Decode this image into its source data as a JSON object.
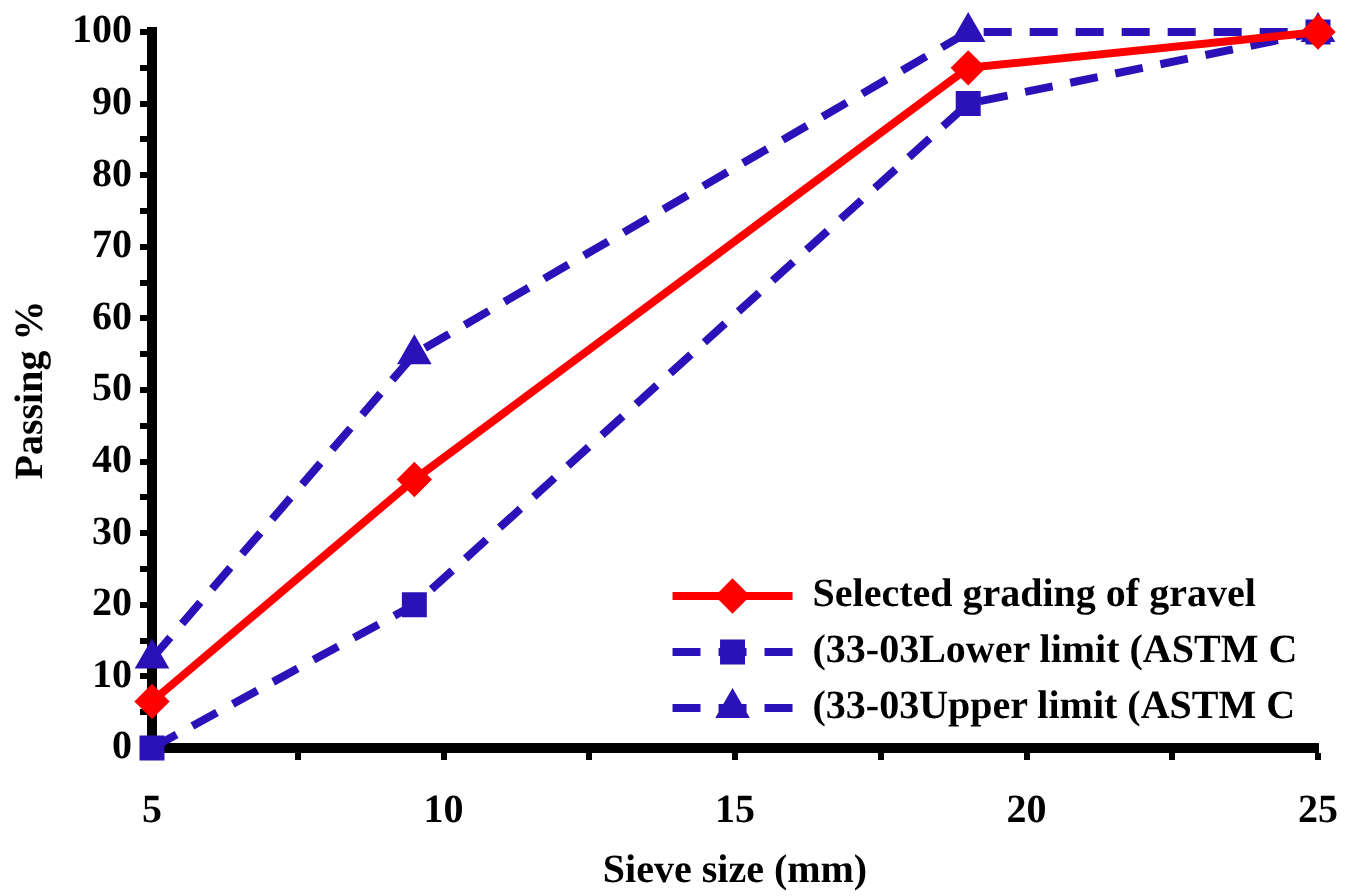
{
  "chart_data": {
    "type": "line",
    "xlabel": "Sieve size (mm)",
    "ylabel": "Passing %",
    "xlim": [
      5,
      25
    ],
    "xticks": [
      5,
      {
        "value": 7.5,
        "label": null
      },
      10,
      {
        "value": 12.5,
        "label": null
      },
      15,
      {
        "value": 17.5,
        "label": null
      },
      20,
      {
        "value": 22.5,
        "label": null
      },
      25
    ],
    "ylim": [
      0,
      100
    ],
    "yticks": [
      0,
      {
        "value": 5,
        "label": null
      },
      10,
      {
        "value": 15,
        "label": null
      },
      20,
      {
        "value": 25,
        "label": null
      },
      30,
      {
        "value": 35,
        "label": null
      },
      40,
      {
        "value": 45,
        "label": null
      },
      50,
      {
        "value": 55,
        "label": null
      },
      60,
      {
        "value": 65,
        "label": null
      },
      70,
      {
        "value": 75,
        "label": null
      },
      80,
      {
        "value": 85,
        "label": null
      },
      90,
      {
        "value": 95,
        "label": null
      },
      100
    ],
    "grid": false,
    "legend": "bottom right",
    "series": [
      {
        "name": "Selected grading of gravel",
        "color": "#ff0000",
        "x": [
          5,
          9.5,
          19,
          25
        ],
        "values": [
          6.5,
          37.5,
          95,
          100
        ],
        "marker": "diamond",
        "line_style": "solid"
      },
      {
        "name": "(33-03Lower limit (ASTM C",
        "color": "#2a12b8",
        "x": [
          5,
          9.5,
          19,
          25
        ],
        "values": [
          0,
          20,
          90,
          100
        ],
        "marker": "square",
        "line_style": "dashed"
      },
      {
        "name": "(33-03Upper limit (ASTM C",
        "color": "#2a12b8",
        "x": [
          5,
          9.5,
          19,
          25
        ],
        "values": [
          12.5,
          55,
          100,
          100
        ],
        "marker": "triangle",
        "line_style": "dashed"
      }
    ]
  }
}
